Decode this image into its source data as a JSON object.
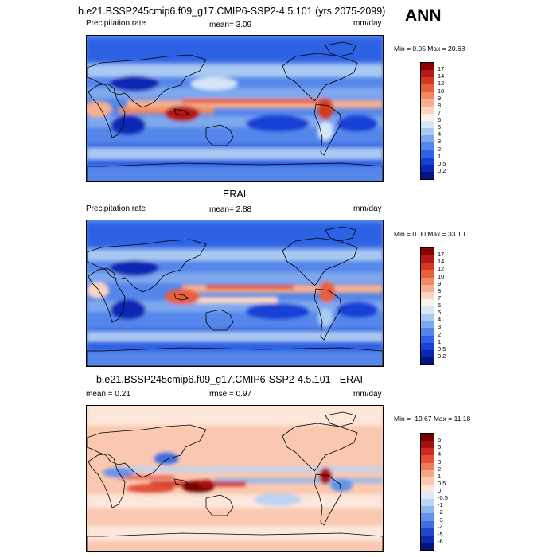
{
  "season": "ANN",
  "panels": [
    {
      "title": "b.e21.BSSP245cmip6.f09_g17.CMIP6-SSP2-4.5.101 (yrs 2075-2099)",
      "left_label": "Precipitation rate",
      "center_label": "mean=  3.09",
      "right_label": "mm/day",
      "minmax": "Min =   0.05 Max =  20.68",
      "levels": [
        "17",
        "14",
        "12",
        "10",
        "9",
        "8",
        "7",
        "6",
        "5",
        "4",
        "3",
        "2",
        "1",
        "0.5",
        "0.2"
      ],
      "colors": [
        "#8a0000",
        "#b41818",
        "#d23a1e",
        "#e6603c",
        "#f08a64",
        "#f6b090",
        "#fad6c2",
        "#fdf3ea",
        "#d7e6f7",
        "#a9c9f2",
        "#7ea9ee",
        "#5586ea",
        "#2f62e4",
        "#1640d6",
        "#0a26b4",
        "#021580"
      ],
      "field": "model"
    },
    {
      "title": "ERAI",
      "left_label": "Precipitation rate",
      "center_label": "mean=  2.88",
      "right_label": "mm/day",
      "minmax": "Min =   0.00 Max =  33.10",
      "levels": [
        "17",
        "14",
        "12",
        "10",
        "9",
        "8",
        "7",
        "6",
        "5",
        "4",
        "3",
        "2",
        "1",
        "0.5",
        "0.2"
      ],
      "colors": [
        "#8a0000",
        "#b41818",
        "#d23a1e",
        "#e6603c",
        "#f08a64",
        "#f6b090",
        "#fad6c2",
        "#fdf3ea",
        "#d7e6f7",
        "#a9c9f2",
        "#7ea9ee",
        "#5586ea",
        "#2f62e4",
        "#1640d6",
        "#0a26b4",
        "#021580"
      ],
      "field": "obs"
    },
    {
      "title": "b.e21.BSSP245cmip6.f09_g17.CMIP6-SSP2-4.5.101 - ERAI",
      "left_label": "mean =   0.21",
      "center_label": "rmse =   0.97",
      "right_label": "mm/day",
      "minmax": "Min = -19.67 Max =  11.18",
      "levels": [
        "6",
        "5",
        "4",
        "3",
        "2",
        "1",
        "0.5",
        "0",
        "-0.5",
        "-1",
        "-2",
        "-3",
        "-4",
        "-5",
        "-6"
      ],
      "colors": [
        "#7a0000",
        "#a80e0e",
        "#cc2a20",
        "#e25038",
        "#f07a5c",
        "#f6a688",
        "#fac8b0",
        "#fde6da",
        "#dfeaf8",
        "#bcd3f4",
        "#90b6ee",
        "#6492e8",
        "#3e6ee0",
        "#2048cc",
        "#0e2aa8",
        "#02157a"
      ],
      "field": "diff"
    }
  ]
}
